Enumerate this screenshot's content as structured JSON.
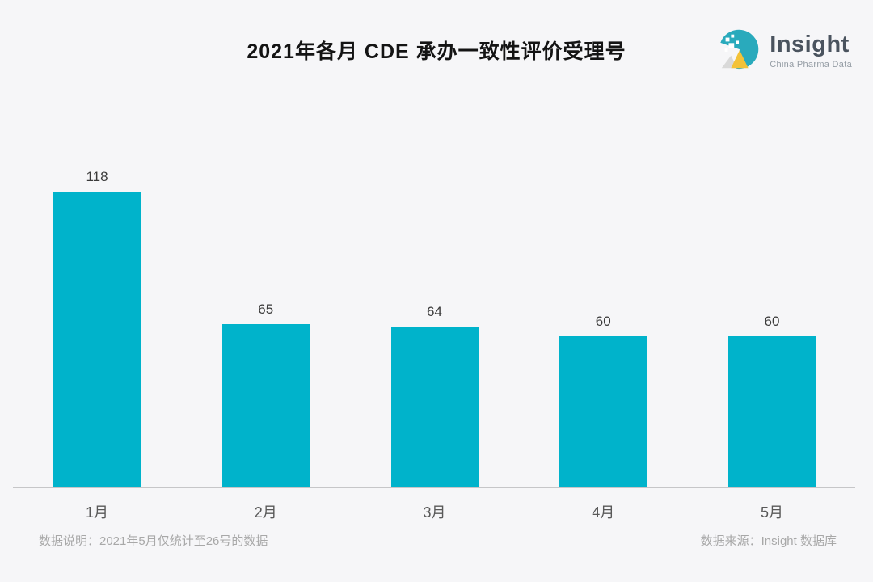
{
  "title": "2021年各月 CDE 承办一致性评价受理号",
  "logo": {
    "name": "Insight",
    "subtitle": "China Pharma Data",
    "icon": "insight-pie-logo-icon",
    "icon_colors": {
      "circle": "#29aabc",
      "mountain": "#f3c238",
      "mountain_shadow": "#d9d9d9",
      "pixels": "#ffffff"
    }
  },
  "chart_data": {
    "type": "bar",
    "categories": [
      "1月",
      "2月",
      "3月",
      "4月",
      "5月"
    ],
    "values": [
      118,
      65,
      64,
      60,
      60
    ],
    "title": "2021年各月 CDE 承办一致性评价受理号",
    "xlabel": "",
    "ylabel": "",
    "ylim": [
      0,
      130
    ],
    "grid": false,
    "legend_position": "none",
    "value_labels_shown": true,
    "bar_color": "#00b3cb",
    "axis_line_color": "#c6c6c8",
    "background_color": "#f6f6f8"
  },
  "footnotes": {
    "left": "数据说明：2021年5月仅统计至26号的数据",
    "right": "数据来源：Insight 数据库"
  }
}
